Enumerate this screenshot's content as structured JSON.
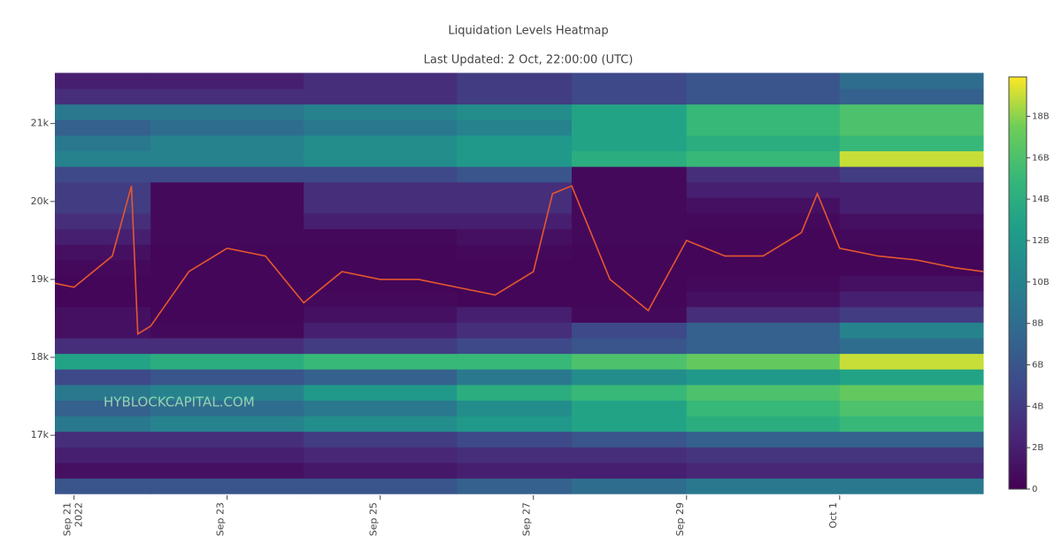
{
  "chart_data": {
    "type": "heatmap",
    "title": "Liquidation Levels Heatmap",
    "subtitle": "Last Updated: 2 Oct, 22:00:00 (UTC)",
    "watermark": "HYBLOCKCAPITAL.COM",
    "x_year_label": "2022",
    "xlim": [
      "2022-09-20 18:00",
      "2022-10-02 21:00"
    ],
    "xticks": [
      {
        "value": "2022-09-21 00:00",
        "label": "Sep 21"
      },
      {
        "value": "2022-09-23 00:00",
        "label": "Sep 23"
      },
      {
        "value": "2022-09-25 00:00",
        "label": "Sep 25"
      },
      {
        "value": "2022-09-27 00:00",
        "label": "Sep 27"
      },
      {
        "value": "2022-09-29 00:00",
        "label": "Sep 29"
      },
      {
        "value": "2022-10-01 00:00",
        "label": "Oct 1"
      }
    ],
    "ylim": [
      16230,
      21700
    ],
    "yticks": [
      {
        "value": 17000,
        "label": "17k"
      },
      {
        "value": 18000,
        "label": "18k"
      },
      {
        "value": 19000,
        "label": "19k"
      },
      {
        "value": 20000,
        "label": "20k"
      },
      {
        "value": 21000,
        "label": "21k"
      }
    ],
    "zlim": [
      0,
      19900000000
    ],
    "zticks": [
      0,
      {
        "value": 2000000000,
        "label": "2B"
      },
      {
        "value": 4000000000,
        "label": "4B"
      },
      {
        "value": 6000000000,
        "label": "6B"
      },
      {
        "value": 8000000000,
        "label": "8B"
      },
      {
        "value": 10000000000,
        "label": "10B"
      },
      {
        "value": 12000000000,
        "label": "12B"
      },
      {
        "value": 14000000000,
        "label": "14B"
      },
      {
        "value": 16000000000,
        "label": "16B"
      },
      {
        "value": 18000000000,
        "label": "18B"
      }
    ],
    "colorscale": "viridis",
    "heatmap": {
      "x": [
        "2022-09-20 18:00",
        "2022-09-22 00:00",
        "2022-09-24 00:00",
        "2022-09-26 00:00",
        "2022-09-27 12:00",
        "2022-09-29 00:00",
        "2022-10-01 00:00",
        "2022-10-02 21:00"
      ],
      "y": [
        16250,
        16450,
        16650,
        16850,
        17050,
        17250,
        17450,
        17650,
        17850,
        18050,
        18250,
        18450,
        18650,
        18850,
        19050,
        19250,
        19450,
        19650,
        19850,
        20050,
        20250,
        20450,
        20650,
        20850,
        21050,
        21250,
        21450,
        21650
      ],
      "z": [
        [
          6000000000.0,
          6000000000.0,
          6000000000.0,
          7000000000.0,
          8000000000.0,
          9000000000.0,
          9000000000.0
        ],
        [
          1000000000.0,
          1000000000.0,
          1500000000.0,
          2000000000.0,
          2000000000.0,
          2500000000.0,
          2500000000.0
        ],
        [
          2000000000.0,
          2000000000.0,
          2500000000.0,
          3000000000.0,
          3000000000.0,
          3500000000.0,
          3500000000.0
        ],
        [
          3000000000.0,
          3000000000.0,
          4000000000.0,
          5000000000.0,
          6000000000.0,
          7000000000.0,
          7000000000.0
        ],
        [
          9000000000.0,
          10000000000.0,
          11000000000.0,
          12000000000.0,
          13000000000.0,
          14000000000.0,
          15000000000.0
        ],
        [
          7000000000.0,
          8000000000.0,
          9000000000.0,
          11000000000.0,
          13000000000.0,
          15000000000.0,
          16000000000.0
        ],
        [
          9000000000.0,
          10000000000.0,
          12000000000.0,
          14000000000.0,
          15000000000.0,
          16000000000.0,
          17000000000.0
        ],
        [
          5000000000.0,
          6000000000.0,
          7000000000.0,
          9000000000.0,
          11000000000.0,
          12000000000.0,
          13000000000.0
        ],
        [
          13000000000.0,
          14000000000.0,
          15000000000.0,
          15000000000.0,
          16000000000.0,
          17000000000.0,
          19000000000.0
        ],
        [
          3000000000.0,
          3000000000.0,
          4000000000.0,
          5000000000.0,
          6000000000.0,
          7000000000.0,
          8000000000.0
        ],
        [
          1000000000.0,
          500000000.0,
          2000000000.0,
          3000000000.0,
          5000000000.0,
          7000000000.0,
          10000000000.0
        ],
        [
          1000000000.0,
          300000000.0,
          1000000000.0,
          2000000000.0,
          500000000.0,
          3000000000.0,
          4000000000.0
        ],
        [
          300000000.0,
          300000000.0,
          500000000.0,
          300000000.0,
          300000000.0,
          1000000000.0,
          2000000000.0
        ],
        [
          300000000.0,
          300000000.0,
          300000000.0,
          300000000.0,
          300000000.0,
          500000000.0,
          1000000000.0
        ],
        [
          500000000.0,
          300000000.0,
          300000000.0,
          300000000.0,
          300000000.0,
          300000000.0,
          300000000.0
        ],
        [
          1000000000.0,
          300000000.0,
          300000000.0,
          500000000.0,
          300000000.0,
          300000000.0,
          300000000.0
        ],
        [
          2000000000.0,
          500000000.0,
          500000000.0,
          1000000000.0,
          500000000.0,
          300000000.0,
          500000000.0
        ],
        [
          3000000000.0,
          500000000.0,
          2000000000.0,
          2000000000.0,
          500000000.0,
          500000000.0,
          1000000000.0
        ],
        [
          4000000000.0,
          500000000.0,
          3000000000.0,
          3000000000.0,
          500000000.0,
          1000000000.0,
          2000000000.0
        ],
        [
          4000000000.0,
          500000000.0,
          3000000000.0,
          3000000000.0,
          500000000.0,
          2000000000.0,
          2000000000.0
        ],
        [
          5000000000.0,
          5000000000.0,
          5000000000.0,
          6000000000.0,
          500000000.0,
          3000000000.0,
          4000000000.0
        ],
        [
          10000000000.0,
          10000000000.0,
          11000000000.0,
          12000000000.0,
          14000000000.0,
          15000000000.0,
          19000000000.0
        ],
        [
          9000000000.0,
          10000000000.0,
          11000000000.0,
          12000000000.0,
          13000000000.0,
          14000000000.0,
          15000000000.0
        ],
        [
          7000000000.0,
          8000000000.0,
          9000000000.0,
          10000000000.0,
          13000000000.0,
          15000000000.0,
          16000000000.0
        ],
        [
          9000000000.0,
          9000000000.0,
          10000000000.0,
          11000000000.0,
          13000000000.0,
          15000000000.0,
          16000000000.0
        ],
        [
          3000000000.0,
          3000000000.0,
          3000000000.0,
          4000000000.0,
          5000000000.0,
          6000000000.0,
          7000000000.0
        ],
        [
          2000000000.0,
          2000000000.0,
          3000000000.0,
          4000000000.0,
          5000000000.0,
          6000000000.0,
          8000000000.0
        ]
      ]
    },
    "price": {
      "color": "#e4572e",
      "x": [
        "2022-09-20 18:00",
        "2022-09-21 00:00",
        "2022-09-21 12:00",
        "2022-09-21 18:00",
        "2022-09-21 20:00",
        "2022-09-22 00:00",
        "2022-09-22 12:00",
        "2022-09-23 00:00",
        "2022-09-23 12:00",
        "2022-09-24 00:00",
        "2022-09-24 12:00",
        "2022-09-25 00:00",
        "2022-09-25 12:00",
        "2022-09-26 00:00",
        "2022-09-26 12:00",
        "2022-09-27 00:00",
        "2022-09-27 06:00",
        "2022-09-27 12:00",
        "2022-09-28 00:00",
        "2022-09-28 12:00",
        "2022-09-29 00:00",
        "2022-09-29 12:00",
        "2022-09-30 00:00",
        "2022-09-30 12:00",
        "2022-09-30 17:00",
        "2022-10-01 00:00",
        "2022-10-01 12:00",
        "2022-10-02 00:00",
        "2022-10-02 12:00",
        "2022-10-02 21:00"
      ],
      "values": [
        18950,
        18900,
        19300,
        20200,
        18300,
        18400,
        19100,
        19400,
        19300,
        18700,
        19100,
        19000,
        19000,
        18900,
        18800,
        19100,
        20100,
        20200,
        19000,
        18600,
        19500,
        19300,
        19300,
        19600,
        20100,
        19400,
        19300,
        19250,
        19150,
        19100
      ]
    }
  }
}
